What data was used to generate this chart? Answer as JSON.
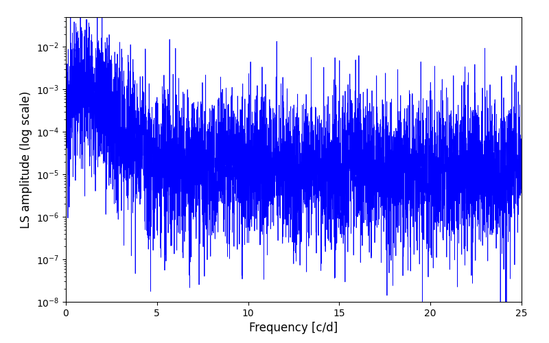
{
  "title": "",
  "xlabel": "Frequency [c/d]",
  "ylabel": "LS amplitude (log scale)",
  "line_color": "#0000FF",
  "line_width": 0.6,
  "xmin": 0,
  "xmax": 25,
  "ymin": 1e-08,
  "ymax": 0.05,
  "xticks": [
    0,
    5,
    10,
    15,
    20,
    25
  ],
  "figsize": [
    8.0,
    5.0
  ],
  "dpi": 100,
  "n_points": 5000,
  "seed": 42,
  "envelope_freqs": [
    0,
    0.3,
    0.7,
    1.0,
    1.5,
    2.0,
    3.0,
    4.0,
    5.0,
    6.0,
    8.0,
    10.0,
    12.0,
    15.0,
    18.0,
    22.0,
    25.0
  ],
  "envelope_log10": [
    -3.0,
    -2.3,
    -2.1,
    -2.0,
    -2.2,
    -2.5,
    -3.1,
    -3.5,
    -3.8,
    -3.9,
    -3.9,
    -4.0,
    -4.0,
    -4.0,
    -4.1,
    -4.1,
    -4.1
  ],
  "noise_scale_log10": 2.5,
  "n_components": 1200
}
